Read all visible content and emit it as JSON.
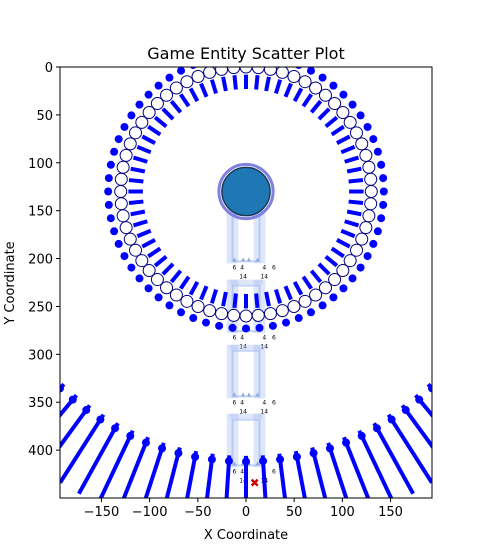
{
  "chart_data": {
    "type": "scatter",
    "title": "Game Entity Scatter Plot",
    "xlabel": "X Coordinate",
    "ylabel": "Y Coordinate",
    "xlim": [
      -193,
      193
    ],
    "ylim": [
      450,
      0
    ],
    "x_ticks": [
      -150,
      -100,
      -50,
      0,
      50,
      100,
      150
    ],
    "y_ticks": [
      0,
      50,
      100,
      150,
      200,
      250,
      300,
      350,
      400
    ],
    "grid": false,
    "legend": "none",
    "colors": {
      "dot": "#0000ff",
      "ring_fill": "#ffffff",
      "ring_edge": "#000080",
      "center_fill": "#1f77b4",
      "center_halo": "#8080e0",
      "bracket": "#a0b8f0",
      "marker_x": "#cc0000"
    },
    "center_entity": {
      "x": 0,
      "y": 130,
      "radius": 25
    },
    "outer_ring": {
      "cx": 0,
      "cy": 130,
      "radius": 143,
      "count": 64,
      "shape": "filled-circle"
    },
    "middle_ring": {
      "cx": 0,
      "cy": 130,
      "radius": 130,
      "count": 64,
      "shape": "open-circle"
    },
    "inner_ring": {
      "cx": 0,
      "cy": 130,
      "inner_radius": 107,
      "outer_radius": 122,
      "count": 64,
      "shape": "tick"
    },
    "bottom_arc": {
      "cx": 0,
      "cy": 130,
      "inner_radius": 276,
      "outer_radius": 360,
      "dot_radius": 282,
      "count": 100,
      "shape": "tick+filled-circle"
    },
    "bracket_groups": [
      {
        "y_top": 148,
        "y_bottom": 205
      },
      {
        "y_top": 222,
        "y_bottom": 278
      },
      {
        "y_top": 290,
        "y_bottom": 346
      },
      {
        "y_top": 362,
        "y_bottom": 418
      }
    ],
    "group_labels": [
      "6",
      "4",
      "14",
      "4",
      "6",
      "14"
    ],
    "marker": {
      "x": 9,
      "y": 434,
      "shape": "x"
    }
  }
}
